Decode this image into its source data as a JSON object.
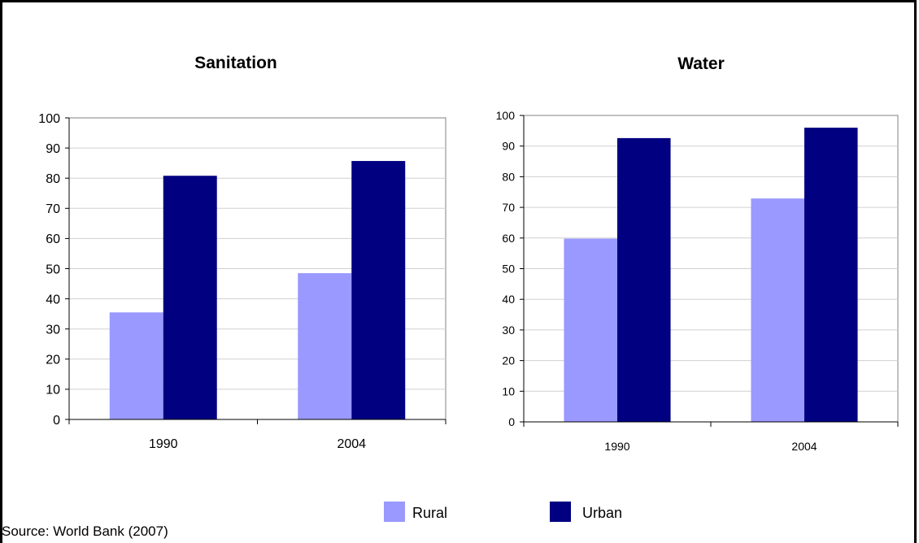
{
  "source_note": "Source: World Bank (2007)",
  "legend": [
    {
      "label": "Rural",
      "color": "#9999ff"
    },
    {
      "label": "Urban",
      "color": "#000080"
    }
  ],
  "chart_data": [
    {
      "type": "bar",
      "title": "Sanitation",
      "categories": [
        "1990",
        "2004"
      ],
      "series": [
        {
          "name": "Rural",
          "values": [
            35.5,
            48.5
          ]
        },
        {
          "name": "Urban",
          "values": [
            80.8,
            85.7
          ]
        }
      ],
      "ylim": [
        0,
        100
      ],
      "yticks": [
        "0",
        "10",
        "20",
        "30",
        "40",
        "50",
        "60",
        "70",
        "80",
        "90",
        "100"
      ],
      "grid": true,
      "legend_position": "bottom"
    },
    {
      "type": "bar",
      "title": "Water",
      "categories": [
        "1990",
        "2004"
      ],
      "series": [
        {
          "name": "Rural",
          "values": [
            59.8,
            72.9
          ]
        },
        {
          "name": "Urban",
          "values": [
            92.6,
            96.0
          ]
        }
      ],
      "ylim": [
        0,
        100
      ],
      "yticks": [
        "0",
        "10",
        "20",
        "30",
        "40",
        "50",
        "60",
        "70",
        "80",
        "90",
        "100"
      ],
      "grid": true,
      "legend_position": "bottom"
    }
  ]
}
